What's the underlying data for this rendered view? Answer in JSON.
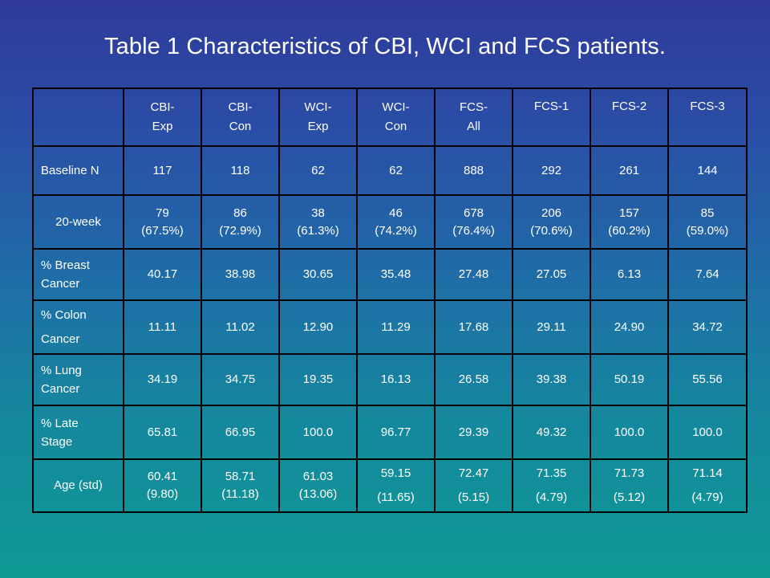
{
  "title": "Table 1 Characteristics of CBI, WCI and FCS patients.",
  "table": {
    "header": [
      {
        "line1": "",
        "line2": ""
      },
      {
        "line1": "CBI-",
        "line2": "Exp"
      },
      {
        "line1": "CBI-",
        "line2": "Con"
      },
      {
        "line1": "WCI-",
        "line2": "Exp"
      },
      {
        "line1": "WCI-",
        "line2": "Con"
      },
      {
        "line1": "FCS-",
        "line2": "All"
      },
      {
        "line1": "FCS-1",
        "line2": ""
      },
      {
        "line1": "FCS-2",
        "line2": ""
      },
      {
        "line1": "FCS-3",
        "line2": ""
      }
    ],
    "rows": [
      {
        "label1": "Baseline N",
        "label2": "",
        "cells": [
          {
            "line1": "117",
            "line2": ""
          },
          {
            "line1": "118",
            "line2": ""
          },
          {
            "line1": "62",
            "line2": ""
          },
          {
            "line1": "62",
            "line2": ""
          },
          {
            "line1": "888",
            "line2": ""
          },
          {
            "line1": "292",
            "line2": ""
          },
          {
            "line1": "261",
            "line2": ""
          },
          {
            "line1": "144",
            "line2": ""
          }
        ]
      },
      {
        "label1": "20-week",
        "label2": "",
        "cells": [
          {
            "line1": "79",
            "line2": "(67.5%)"
          },
          {
            "line1": "86",
            "line2": "(72.9%)"
          },
          {
            "line1": "38",
            "line2": "(61.3%)"
          },
          {
            "line1": "46",
            "line2": "(74.2%)"
          },
          {
            "line1": "678",
            "line2": "(76.4%)"
          },
          {
            "line1": "206",
            "line2": "(70.6%)"
          },
          {
            "line1": "157",
            "line2": "(60.2%)"
          },
          {
            "line1": "85",
            "line2": "(59.0%)"
          }
        ]
      },
      {
        "label1": "% Breast",
        "label2": "Cancer",
        "cells": [
          {
            "line1": "40.17",
            "line2": ""
          },
          {
            "line1": "38.98",
            "line2": ""
          },
          {
            "line1": "30.65",
            "line2": ""
          },
          {
            "line1": "35.48",
            "line2": ""
          },
          {
            "line1": "27.48",
            "line2": ""
          },
          {
            "line1": "27.05",
            "line2": ""
          },
          {
            "line1": "6.13",
            "line2": ""
          },
          {
            "line1": "7.64",
            "line2": ""
          }
        ]
      },
      {
        "label1": "% Colon",
        "label2": "Cancer",
        "cells": [
          {
            "line1": "11.11",
            "line2": ""
          },
          {
            "line1": "11.02",
            "line2": ""
          },
          {
            "line1": "12.90",
            "line2": ""
          },
          {
            "line1": "11.29",
            "line2": ""
          },
          {
            "line1": "17.68",
            "line2": ""
          },
          {
            "line1": "29.11",
            "line2": ""
          },
          {
            "line1": "24.90",
            "line2": ""
          },
          {
            "line1": "34.72",
            "line2": ""
          }
        ]
      },
      {
        "label1": "% Lung",
        "label2": "Cancer",
        "cells": [
          {
            "line1": "34.19",
            "line2": ""
          },
          {
            "line1": "34.75",
            "line2": ""
          },
          {
            "line1": "19.35",
            "line2": ""
          },
          {
            "line1": "16.13",
            "line2": ""
          },
          {
            "line1": "26.58",
            "line2": ""
          },
          {
            "line1": "39.38",
            "line2": ""
          },
          {
            "line1": "50.19",
            "line2": ""
          },
          {
            "line1": "55.56",
            "line2": ""
          }
        ]
      },
      {
        "label1": "% Late",
        "label2": "Stage",
        "cells": [
          {
            "line1": "65.81",
            "line2": ""
          },
          {
            "line1": "66.95",
            "line2": ""
          },
          {
            "line1": "100.0",
            "line2": ""
          },
          {
            "line1": "96.77",
            "line2": ""
          },
          {
            "line1": "29.39",
            "line2": ""
          },
          {
            "line1": "49.32",
            "line2": ""
          },
          {
            "line1": "100.0",
            "line2": ""
          },
          {
            "line1": "100.0",
            "line2": ""
          }
        ]
      },
      {
        "label1": "Age (std)",
        "label2": "",
        "cells": [
          {
            "line1": "60.41",
            "line2": "(9.80)"
          },
          {
            "line1": "58.71",
            "line2": "(11.18)"
          },
          {
            "line1": "61.03",
            "line2": "(13.06)"
          },
          {
            "line1": "59.15",
            "line2": "(11.65)"
          },
          {
            "line1": "72.47",
            "line2": "(5.15)"
          },
          {
            "line1": "71.35",
            "line2": "(4.79)"
          },
          {
            "line1": "71.73",
            "line2": "(5.12)"
          },
          {
            "line1": "71.14",
            "line2": "(4.79)"
          }
        ]
      }
    ]
  }
}
